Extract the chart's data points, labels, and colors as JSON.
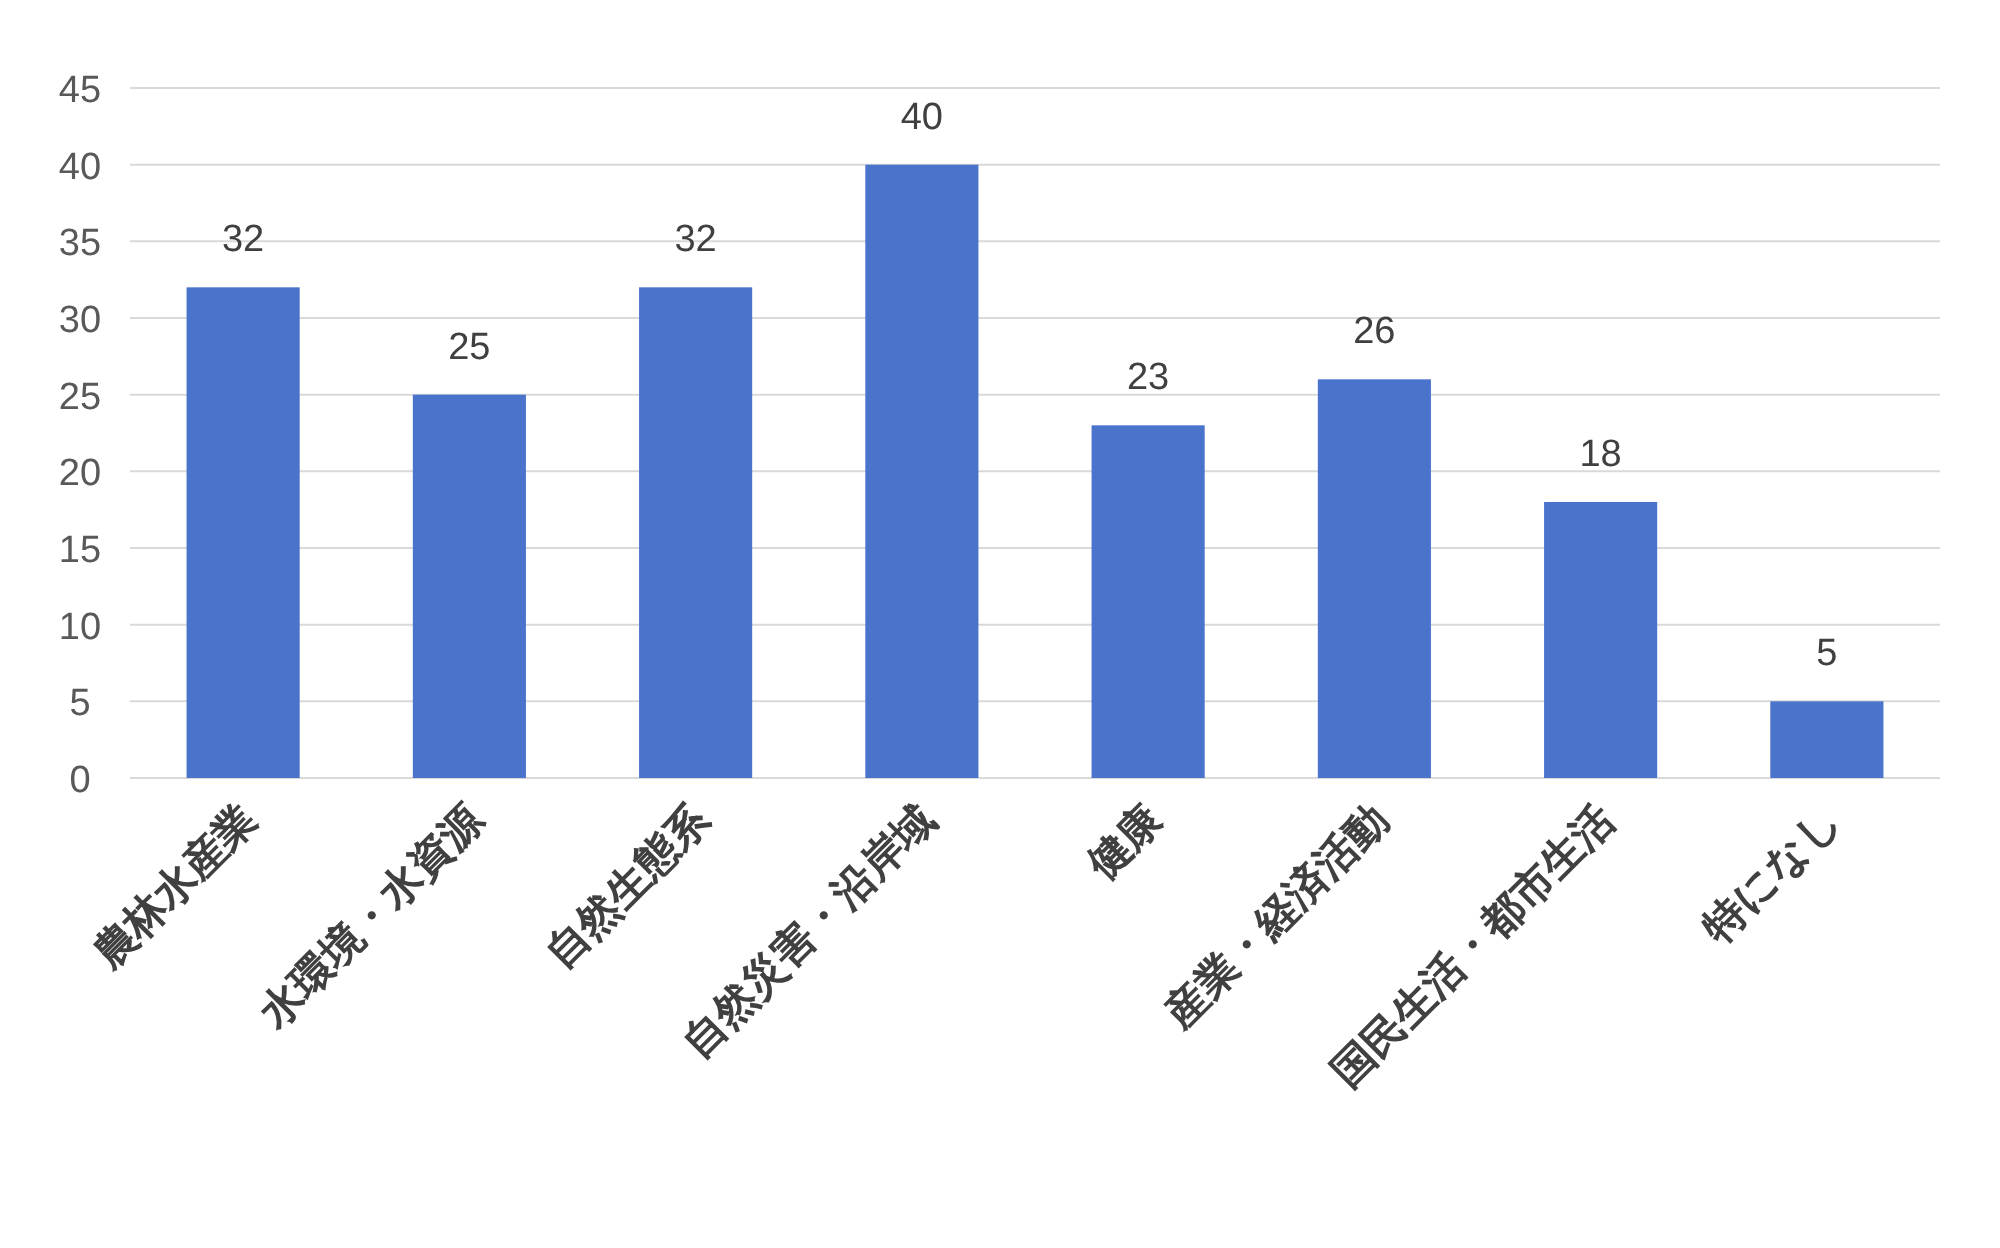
{
  "chart_data": {
    "type": "bar",
    "categories": [
      "農林水産業",
      "水環境・水資源",
      "自然生態系",
      "自然災害・沿岸域",
      "健康",
      "産業・経済活動",
      "国民生活・都市生活",
      "特になし"
    ],
    "values": [
      32,
      25,
      32,
      40,
      23,
      26,
      18,
      5
    ],
    "color": "#4a74cc",
    "ylim": [
      0,
      45
    ],
    "yticks": [
      0,
      5,
      10,
      15,
      20,
      25,
      30,
      35,
      40,
      45
    ],
    "grid": "y",
    "data_labels": true
  }
}
